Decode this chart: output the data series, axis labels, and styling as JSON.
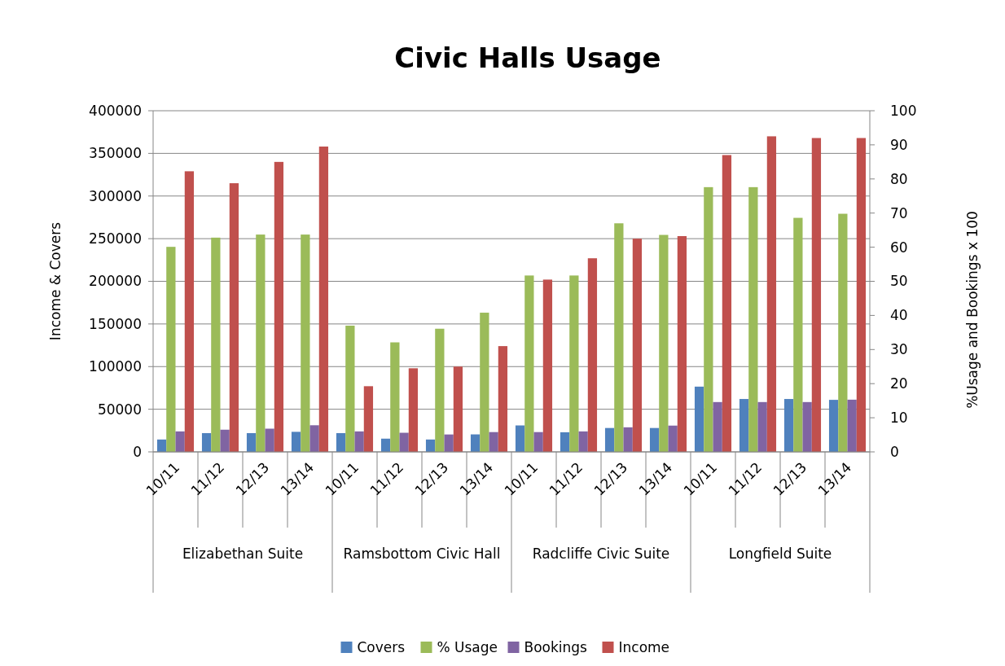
{
  "chart_data": {
    "type": "bar",
    "title": "Civic Halls Usage",
    "categories": [
      "10/11",
      "11/12",
      "12/13",
      "13/14",
      "10/11",
      "11/12",
      "12/13",
      "13/14",
      "10/11",
      "11/12",
      "12/13",
      "13/14",
      "10/11",
      "11/12",
      "12/13",
      "13/14"
    ],
    "annotations": [
      "Elizabethan Suite",
      "Ramsbottom Civic Hall",
      "Radcliffe Civic Suite",
      "Longfield Suite"
    ],
    "series": [
      {
        "name": "Covers",
        "color": "#4f81bd",
        "values": [
          14500,
          22000,
          22000,
          23500,
          22000,
          15500,
          14500,
          20500,
          31000,
          23000,
          28000,
          28000,
          76500,
          62000,
          62000,
          61000
        ]
      },
      {
        "name": "% Usage",
        "color": "#9bbb59",
        "axis": "y2",
        "values": [
          60.1,
          62.8,
          63.7,
          63.7,
          37,
          32.1,
          36.1,
          40.8,
          51.7,
          51.7,
          67,
          63.6,
          77.6,
          77.6,
          68.6,
          69.8
        ]
      },
      {
        "name": "Bookings",
        "color": "#8064a2",
        "axis": "y2",
        "values": [
          6,
          6.5,
          6.8,
          7.8,
          6,
          5.6,
          5.1,
          5.8,
          5.8,
          6,
          7.2,
          7.7,
          14.6,
          14.6,
          14.6,
          15.3
        ]
      },
      {
        "name": "Income",
        "color": "#c0504d",
        "values": [
          329000,
          315000,
          340000,
          358000,
          77000,
          98000,
          100000,
          124000,
          202000,
          227000,
          250000,
          253000,
          348000,
          370000,
          368000,
          368000
        ]
      }
    ],
    "ylabel": "Income & Covers",
    "y2label": "%Usage and Bookings x 100",
    "ylim": [
      0,
      400000
    ],
    "yticks": [
      0,
      50000,
      100000,
      150000,
      200000,
      250000,
      300000,
      350000,
      400000
    ],
    "y2lim": [
      0,
      100
    ],
    "y2ticks": [
      0,
      10,
      20,
      30,
      40,
      50,
      60,
      70,
      80,
      90,
      100
    ],
    "grid": "y",
    "legend": "bottom"
  }
}
